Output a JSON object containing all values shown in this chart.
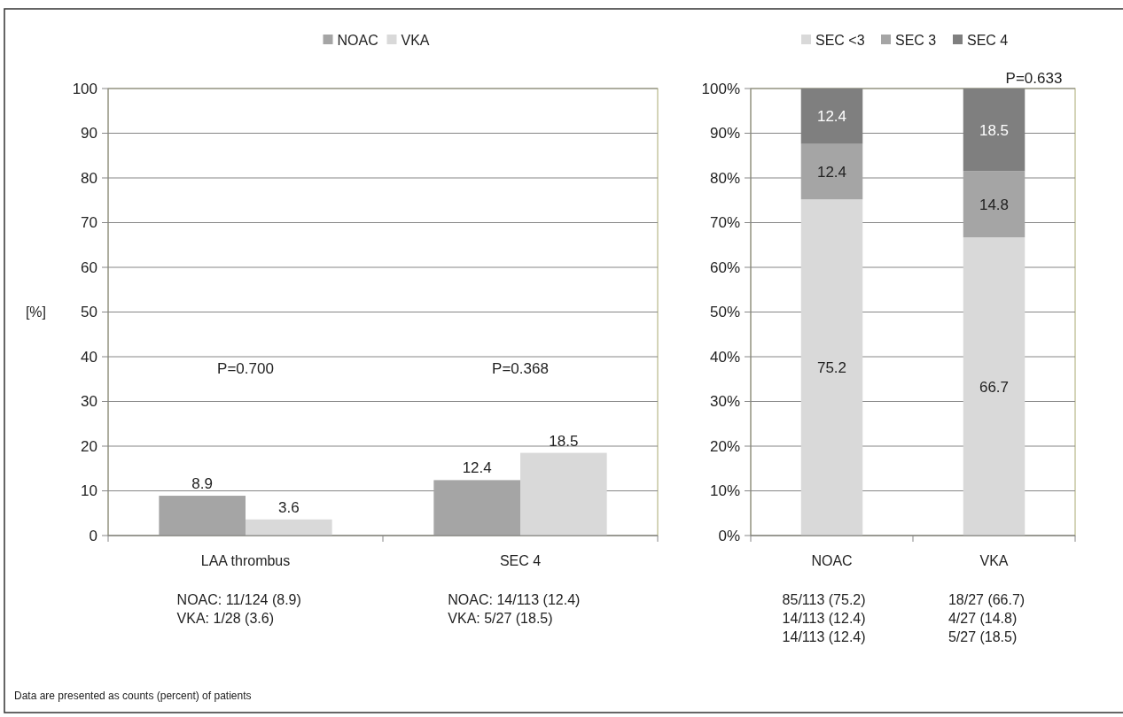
{
  "chart_data": [
    {
      "type": "bar",
      "ylabel": "[%]",
      "categories": [
        "LAA thrombus",
        "SEC 4"
      ],
      "series": [
        {
          "name": "NOAC",
          "color": "#a5a5a5",
          "values": [
            8.9,
            12.4
          ]
        },
        {
          "name": "VKA",
          "color": "#d9d9d9",
          "values": [
            3.6,
            18.5
          ]
        }
      ],
      "ylim": [
        0,
        100
      ],
      "yticks": [
        0,
        10,
        20,
        30,
        40,
        50,
        60,
        70,
        80,
        90,
        100
      ],
      "grid": "y",
      "legend": "top",
      "data_labels": true,
      "annotations": [
        "P=0.700",
        "P=0.368",
        "NOAC: 11/124 (8.9)\nVKA: 1/28 (3.6)",
        "NOAC: 14/113 (12.4)\nVKA: 5/27 (18.5)",
        "Data are presented as counts (percent) of patients"
      ]
    },
    {
      "type": "bar",
      "stacked": true,
      "categories": [
        "NOAC",
        "VKA"
      ],
      "series": [
        {
          "name": "SEC <3",
          "color": "#d9d9d9",
          "values": [
            75.2,
            66.7
          ]
        },
        {
          "name": "SEC 3",
          "color": "#a5a5a5",
          "values": [
            12.4,
            14.8
          ]
        },
        {
          "name": "SEC 4",
          "color": "#7f7f7f",
          "values": [
            12.4,
            18.5
          ]
        }
      ],
      "ylim": [
        0,
        100
      ],
      "yticks": [
        {
          "value": 0,
          "label": "0%"
        },
        {
          "value": 10,
          "label": "10%"
        },
        {
          "value": 20,
          "label": "20%"
        },
        {
          "value": 30,
          "label": "30%"
        },
        {
          "value": 40,
          "label": "40%"
        },
        {
          "value": 50,
          "label": "50%"
        },
        {
          "value": 60,
          "label": "60%"
        },
        {
          "value": 70,
          "label": "70%"
        },
        {
          "value": 80,
          "label": "80%"
        },
        {
          "value": 90,
          "label": "90%"
        },
        {
          "value": 100,
          "label": "100%"
        }
      ],
      "grid": "y",
      "legend": "top",
      "data_labels": true,
      "annotations": [
        {
          "text": "P=0.633",
          "x": "VKA",
          "y": 100
        },
        "85/113 (75.2)\n14/113 (12.4)\n14/113 (12.4)",
        "18/27 (66.7)\n4/27 (14.8)\n5/27 (18.5)"
      ]
    }
  ]
}
